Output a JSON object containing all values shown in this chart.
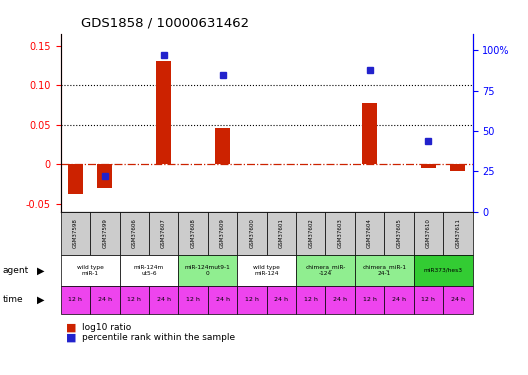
{
  "title": "GDS1858 / 10000631462",
  "samples": [
    "GSM37598",
    "GSM37599",
    "GSM37606",
    "GSM37607",
    "GSM37608",
    "GSM37609",
    "GSM37600",
    "GSM37601",
    "GSM37602",
    "GSM37603",
    "GSM37604",
    "GSM37605",
    "GSM37610",
    "GSM37611"
  ],
  "log10_ratio": [
    -0.037,
    -0.03,
    0.0,
    0.13,
    0.0,
    0.046,
    0.0,
    0.0,
    0.0,
    0.0,
    0.078,
    0.0,
    -0.005,
    -0.008
  ],
  "percentile_rank": [
    null,
    22,
    null,
    97,
    null,
    85,
    null,
    null,
    null,
    null,
    88,
    null,
    44,
    null
  ],
  "ylim_left": [
    -0.06,
    0.165
  ],
  "ylim_right": [
    0,
    110.25
  ],
  "yticks_left": [
    -0.05,
    0.0,
    0.05,
    0.1,
    0.15
  ],
  "yticks_right": [
    0,
    25,
    50,
    75,
    100
  ],
  "ytick_labels_left": [
    "-0.05",
    "0",
    "0.05",
    "0.10",
    "0.15"
  ],
  "ytick_labels_right": [
    "0",
    "25",
    "50",
    "75",
    "100%"
  ],
  "hlines": [
    0.05,
    0.1
  ],
  "agent_groups": [
    {
      "label": "wild type\nmiR-1",
      "start": 0,
      "end": 2,
      "color": "#ffffff"
    },
    {
      "label": "miR-124m\nut5-6",
      "start": 2,
      "end": 4,
      "color": "#ffffff"
    },
    {
      "label": "miR-124mut9-1\n0",
      "start": 4,
      "end": 6,
      "color": "#90ee90"
    },
    {
      "label": "wild type\nmiR-124",
      "start": 6,
      "end": 8,
      "color": "#ffffff"
    },
    {
      "label": "chimera_miR-\n-124",
      "start": 8,
      "end": 10,
      "color": "#90ee90"
    },
    {
      "label": "chimera_miR-1\n24-1",
      "start": 10,
      "end": 12,
      "color": "#90ee90"
    },
    {
      "label": "miR373/hes3",
      "start": 12,
      "end": 14,
      "color": "#33cc33"
    }
  ],
  "time_labels": [
    "12 h",
    "24 h",
    "12 h",
    "24 h",
    "12 h",
    "24 h",
    "12 h",
    "24 h",
    "12 h",
    "24 h",
    "12 h",
    "24 h",
    "12 h",
    "24 h"
  ],
  "time_color": "#ee44ee",
  "bar_color": "#cc2200",
  "dot_color": "#2222cc",
  "zero_line_color": "#cc2200",
  "sample_box_color": "#cccccc",
  "border_color": "#000000"
}
